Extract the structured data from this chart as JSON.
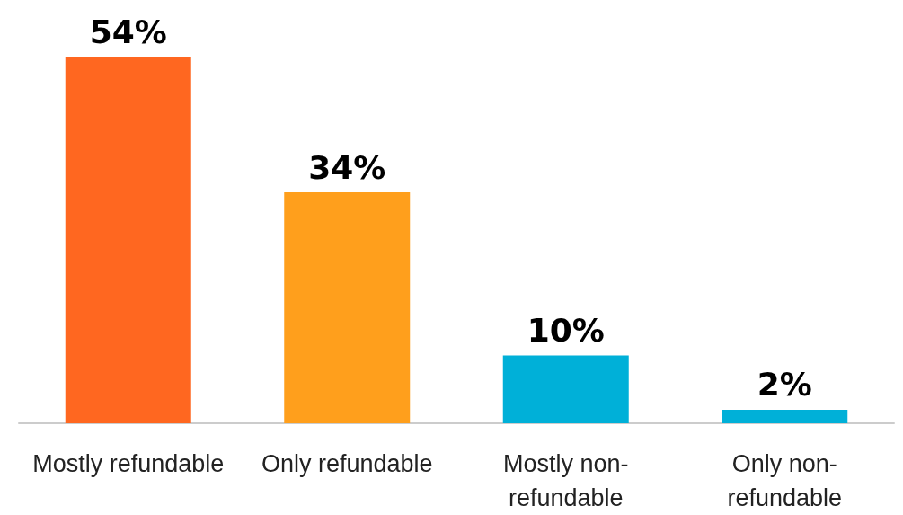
{
  "chart_data": {
    "type": "bar",
    "categories": [
      "Mostly refundable",
      "Only refundable",
      "Mostly non-refundable",
      "Only non-refundable"
    ],
    "values": [
      54,
      34,
      10,
      2
    ],
    "colors": [
      "#ff6720",
      "#ff9f1c",
      "#00b0d8",
      "#00b0d8"
    ],
    "value_labels": [
      "54%",
      "34%",
      "10%",
      "2%"
    ]
  }
}
